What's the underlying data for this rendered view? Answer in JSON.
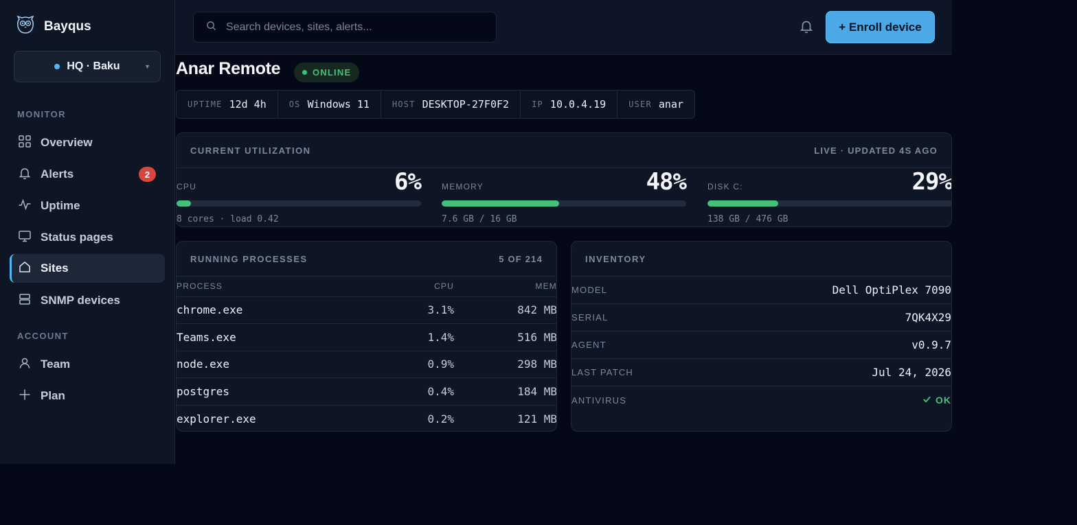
{
  "app": {
    "name": "Bayqus"
  },
  "site_picker": {
    "label": "HQ · Baku"
  },
  "sidebar": {
    "monitor_label": "MONITOR",
    "account_label": "ACCOUNT",
    "items": [
      {
        "label": "Overview",
        "icon": "grid-icon"
      },
      {
        "label": "Alerts",
        "icon": "bell-icon",
        "badge": "2"
      },
      {
        "label": "Uptime",
        "icon": "pulse-icon"
      },
      {
        "label": "Status pages",
        "icon": "monitor-icon"
      },
      {
        "label": "Sites",
        "icon": "home-icon",
        "active": true
      },
      {
        "label": "SNMP devices",
        "icon": "server-icon"
      },
      {
        "label": "Team",
        "icon": "user-icon"
      },
      {
        "label": "Plan",
        "icon": "plus-icon"
      }
    ]
  },
  "topbar": {
    "search_placeholder": "Search devices, sites, alerts...",
    "enroll_label": "+ Enroll device"
  },
  "device": {
    "name": "Anar Remote",
    "status": "ONLINE",
    "facts": [
      {
        "key": "UPTIME",
        "value": "12d 4h"
      },
      {
        "key": "OS",
        "value": "Windows 11"
      },
      {
        "key": "HOST",
        "value": "DESKTOP-27F0F2"
      },
      {
        "key": "IP",
        "value": "10.0.4.19"
      },
      {
        "key": "USER",
        "value": "anar"
      }
    ]
  },
  "utilization": {
    "title": "CURRENT UTILIZATION",
    "meta": "LIVE · UPDATED 4S AGO",
    "metrics": [
      {
        "label": "CPU",
        "value": "6%",
        "fraction": 0.06,
        "detail": "8 cores · load 0.42"
      },
      {
        "label": "MEMORY",
        "value": "48%",
        "fraction": 0.48,
        "detail": "7.6 GB / 16 GB"
      },
      {
        "label": "DISK C:",
        "value": "29%",
        "fraction": 0.29,
        "detail": "138 GB / 476 GB"
      }
    ]
  },
  "processes": {
    "title": "RUNNING PROCESSES",
    "meta": "5 OF 214",
    "columns": [
      "PROCESS",
      "CPU",
      "MEM"
    ],
    "rows": [
      {
        "name": "chrome.exe",
        "cpu": "3.1%",
        "mem": "842 MB"
      },
      {
        "name": "Teams.exe",
        "cpu": "1.4%",
        "mem": "516 MB"
      },
      {
        "name": "node.exe",
        "cpu": "0.9%",
        "mem": "298 MB"
      },
      {
        "name": "postgres",
        "cpu": "0.4%",
        "mem": "184 MB"
      },
      {
        "name": "explorer.exe",
        "cpu": "0.2%",
        "mem": "121 MB"
      }
    ]
  },
  "inventory": {
    "title": "INVENTORY",
    "rows": [
      {
        "key": "MODEL",
        "value": "Dell OptiPlex 7090"
      },
      {
        "key": "SERIAL",
        "value": "7QK4X29"
      },
      {
        "key": "AGENT",
        "value": "v0.9.7"
      },
      {
        "key": "LAST PATCH",
        "value": "Jul 24, 2026"
      },
      {
        "key": "ANTIVIRUS",
        "value": "OK"
      }
    ]
  },
  "colors": {
    "accent": "#4ca9e8",
    "ok": "#45c07a",
    "alert": "#d9463f",
    "background": "#050816"
  }
}
